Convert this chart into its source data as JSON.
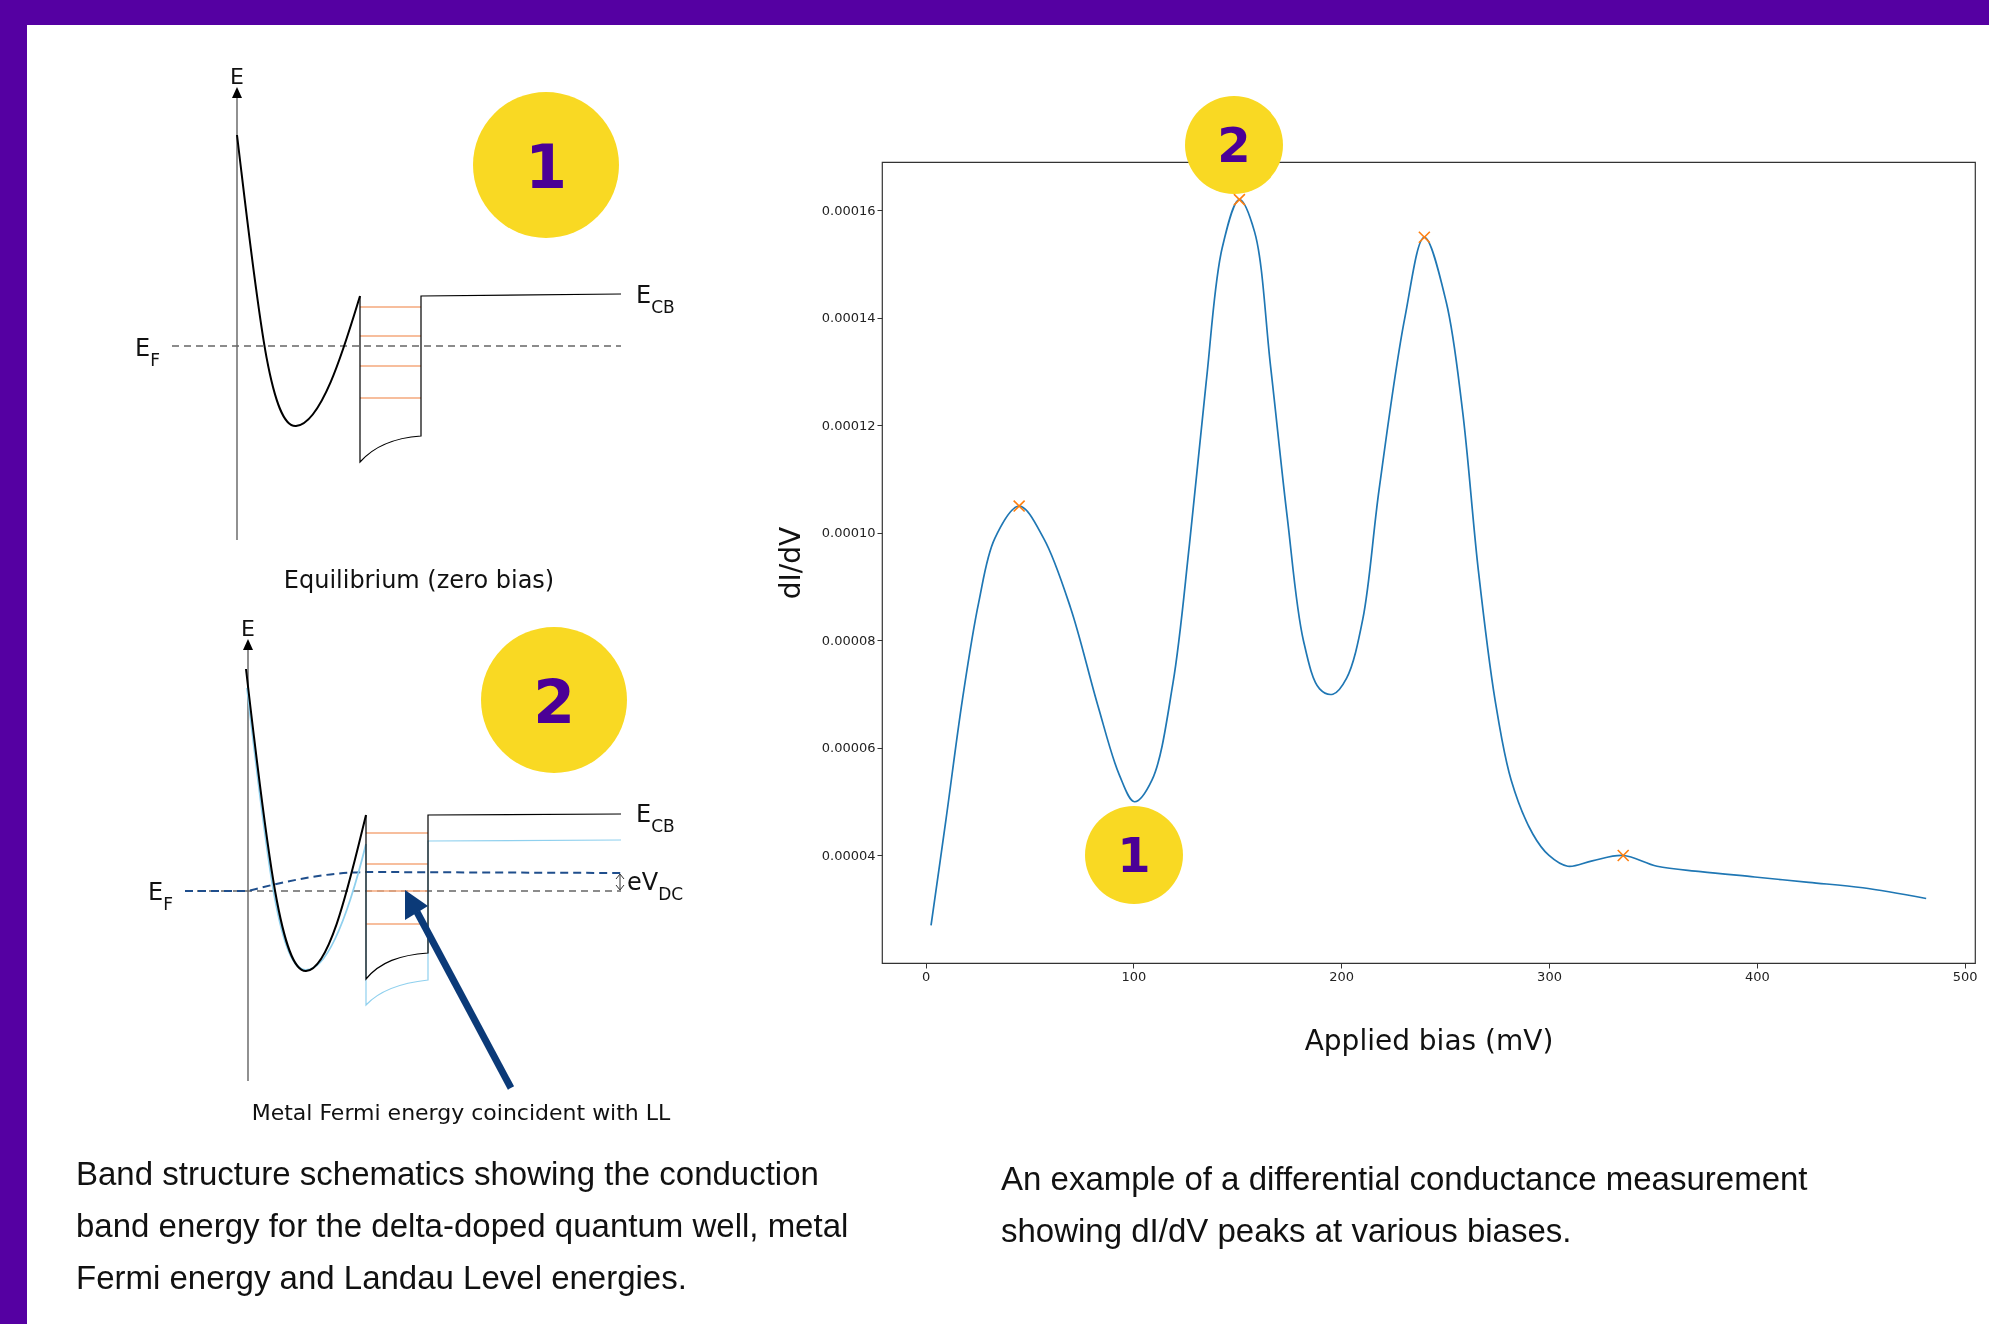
{
  "chart_data": [
    {
      "type": "other",
      "annotations": [
        "1",
        "E",
        "E$_{CB}$",
        "E$_{F}$",
        "Equilibrium (zero bias)",
        "2",
        "E",
        "E$_{CB}$",
        "E$_{F}$",
        "eV$_{DC}$",
        "Metal Fermi energy coincident with LL",
        "Band structure schematics showing the conduction band energy for the delta-doped quantum well, metal Fermi energy and Landau Level energies."
      ]
    },
    {
      "type": "line",
      "xlabel": "Applied bias (mV)",
      "ylabel": "dI/dV",
      "xlim": [
        -21,
        505
      ],
      "ylim": [
        2e-05,
        0.000169
      ],
      "xticks": [
        0,
        100,
        200,
        300,
        400,
        500
      ],
      "yticks": [
        {
          "value": 4e-05,
          "label": "0.00004"
        },
        {
          "value": 6e-05,
          "label": "0.00006"
        },
        {
          "value": 8e-05,
          "label": "0.00008"
        },
        {
          "value": 0.0001,
          "label": "0.00010"
        },
        {
          "value": 0.00012,
          "label": "0.00012"
        },
        {
          "value": 0.00014,
          "label": "0.00014"
        },
        {
          "value": 0.00016,
          "label": "0.00016"
        }
      ],
      "series": [
        {
          "type": "line",
          "color": "#1f77b4",
          "x": [
            2.6,
            9.9,
            17.7,
            25.5,
            33.3,
            45,
            56.8,
            69.8,
            82.8,
            93.2,
            100.5,
            108.9,
            119,
            127,
            135,
            142.7,
            151,
            158.3,
            166,
            174,
            181.8,
            189.6,
            196,
            202.6,
            210.4,
            218.2,
            230.6,
            240,
            250.5,
            258.3,
            266,
            274,
            281.8,
            292.2,
            300,
            309,
            320.8,
            335.7,
            352,
            373,
            399,
            425,
            451,
            481.5
          ],
          "values": [
            2.7e-05,
            4.7e-05,
            6.9e-05,
            8.7e-05,
            9.9e-05,
            0.000105,
            9.9e-05,
            8.6e-05,
            6.8e-05,
            5.5e-05,
            5e-05,
            5.4e-05,
            7.2e-05,
            9.8e-05,
            0.000128,
            0.000153,
            0.000162,
            0.000156,
            0.000131,
            0.000103,
            8e-05,
            7.1e-05,
            7e-05,
            7.3e-05,
            8.4e-05,
            0.000108,
            0.00014,
            0.000155,
            0.000143,
            0.000123,
            9.3e-05,
            6.9e-05,
            5.4e-05,
            4.4e-05,
            4e-05,
            3.8e-05,
            3.9e-05,
            4e-05,
            3.8e-05,
            3.7e-05,
            3.6e-05,
            3.5e-05,
            3.4e-05,
            3.2e-05
          ]
        },
        {
          "type": "scatter",
          "color": "#ff7f0e",
          "marker": "cross",
          "x": [
            45,
            151,
            240,
            335.7
          ],
          "values": [
            0.000105,
            0.000162,
            0.000155,
            4e-05
          ]
        }
      ],
      "annotations": [
        "2",
        "1",
        "An example of a differential conductance measurement showing dI/dV peaks at various biases."
      ]
    }
  ]
}
